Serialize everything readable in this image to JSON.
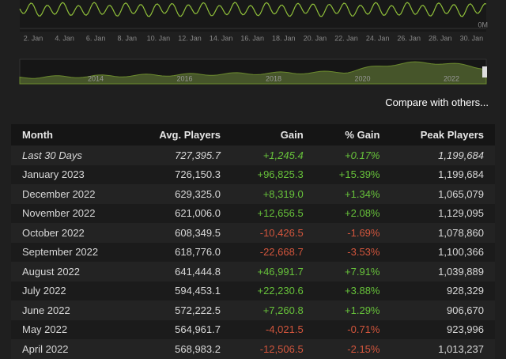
{
  "chart": {
    "x_labels": [
      "2. Jan",
      "4. Jan",
      "6. Jan",
      "8. Jan",
      "10. Jan",
      "12. Jan",
      "14. Jan",
      "16. Jan",
      "18. Jan",
      "20. Jan",
      "22. Jan",
      "24. Jan",
      "26. Jan",
      "28. Jan",
      "30. Jan"
    ],
    "y_label": "0M",
    "navigator_labels": [
      "2014",
      "2016",
      "2018",
      "2020",
      "2022"
    ]
  },
  "compare_link": "Compare with others...",
  "table": {
    "header": [
      "Month",
      "Avg. Players",
      "Gain",
      "% Gain",
      "Peak Players"
    ],
    "rows": [
      [
        "Last 30 Days",
        "727,395.7",
        "+1,245.4",
        "+0.17%",
        "1,199,684"
      ],
      [
        "January 2023",
        "726,150.3",
        "+96,825.3",
        "+15.39%",
        "1,199,684"
      ],
      [
        "December 2022",
        "629,325.0",
        "+8,319.0",
        "+1.34%",
        "1,065,079"
      ],
      [
        "November 2022",
        "621,006.0",
        "+12,656.5",
        "+2.08%",
        "1,129,095"
      ],
      [
        "October 2022",
        "608,349.5",
        "-10,426.5",
        "-1.69%",
        "1,078,860"
      ],
      [
        "September 2022",
        "618,776.0",
        "-22,668.7",
        "-3.53%",
        "1,100,366"
      ],
      [
        "August 2022",
        "641,444.8",
        "+46,991.7",
        "+7.91%",
        "1,039,889"
      ],
      [
        "July 2022",
        "594,453.1",
        "+22,230.6",
        "+3.88%",
        "928,329"
      ],
      [
        "June 2022",
        "572,222.5",
        "+7,260.8",
        "+1.29%",
        "906,670"
      ],
      [
        "May 2022",
        "564,961.7",
        "-4,021.5",
        "-0.71%",
        "923,996"
      ],
      [
        "April 2022",
        "568,983.2",
        "-12,506.5",
        "-2.15%",
        "1,013,237"
      ]
    ]
  }
}
